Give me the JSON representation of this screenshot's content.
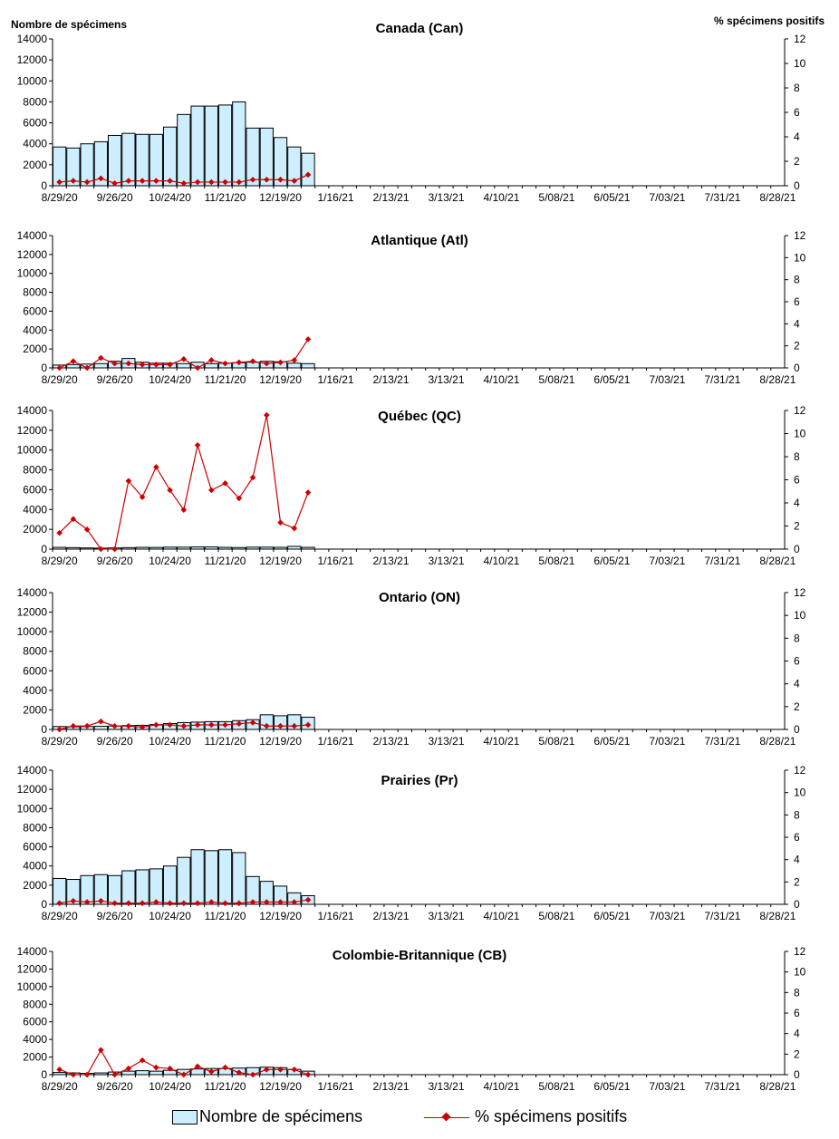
{
  "y_left_label": "Nombre de spécimens",
  "y_right_label": "% spécimens positifs",
  "legend": {
    "bars_label": "Nombre de spécimens",
    "line_label": "% spécimens positifs"
  },
  "colors": {
    "bar_fill": "#cceeff",
    "bar_stroke": "#000000",
    "line": "#cc0000"
  },
  "chart_data": [
    {
      "type": "bar",
      "title": "Canada (Can)",
      "ylim": [
        0,
        14000
      ],
      "y2lim": [
        0,
        12
      ],
      "yticks": [
        0,
        2000,
        4000,
        6000,
        8000,
        10000,
        12000,
        14000
      ],
      "y2ticks": [
        0,
        2,
        4,
        6,
        8,
        10,
        12
      ],
      "xticks": [
        "8/29/20",
        "9/26/20",
        "10/24/20",
        "11/21/20",
        "12/19/20",
        "1/16/21",
        "2/13/21",
        "3/13/21",
        "4/10/21",
        "5/08/21",
        "6/05/21",
        "7/03/21",
        "7/31/21",
        "8/28/21"
      ],
      "series": [
        {
          "name": "Nombre de spécimens",
          "kind": "bar",
          "values": [
            3700,
            3600,
            4000,
            4200,
            4800,
            5000,
            4900,
            4900,
            5600,
            6800,
            7600,
            7600,
            7700,
            8000,
            5500,
            5500,
            4600,
            3700,
            3100
          ]
        },
        {
          "name": "% spécimens positifs",
          "kind": "line",
          "values": [
            0.3,
            0.4,
            0.3,
            0.6,
            0.2,
            0.4,
            0.4,
            0.4,
            0.4,
            0.2,
            0.3,
            0.3,
            0.3,
            0.3,
            0.5,
            0.5,
            0.5,
            0.4,
            0.9
          ]
        }
      ]
    },
    {
      "type": "bar",
      "title": "Atlantique (Atl)",
      "ylim": [
        0,
        14000
      ],
      "y2lim": [
        0,
        12
      ],
      "yticks": [
        0,
        2000,
        4000,
        6000,
        8000,
        10000,
        12000,
        14000
      ],
      "y2ticks": [
        0,
        2,
        4,
        6,
        8,
        10,
        12
      ],
      "xticks": [
        "8/29/20",
        "9/26/20",
        "10/24/20",
        "11/21/20",
        "12/19/20",
        "1/16/21",
        "2/13/21",
        "3/13/21",
        "4/10/21",
        "5/08/21",
        "6/05/21",
        "7/03/21",
        "7/31/21",
        "8/28/21"
      ],
      "series": [
        {
          "name": "Nombre de spécimens",
          "kind": "bar",
          "values": [
            300,
            350,
            400,
            450,
            700,
            1000,
            600,
            500,
            500,
            450,
            600,
            450,
            500,
            550,
            600,
            700,
            650,
            500,
            450
          ]
        },
        {
          "name": "% spécimens positifs",
          "kind": "line",
          "values": [
            0.0,
            0.6,
            0.0,
            0.9,
            0.4,
            0.4,
            0.3,
            0.3,
            0.3,
            0.8,
            0.0,
            0.7,
            0.4,
            0.5,
            0.6,
            0.4,
            0.5,
            0.7,
            2.6
          ]
        }
      ]
    },
    {
      "type": "bar",
      "title": "Québec (QC)",
      "ylim": [
        0,
        14000
      ],
      "y2lim": [
        0,
        12
      ],
      "yticks": [
        0,
        2000,
        4000,
        6000,
        8000,
        10000,
        12000,
        14000
      ],
      "y2ticks": [
        0,
        2,
        4,
        6,
        8,
        10,
        12
      ],
      "xticks": [
        "8/29/20",
        "9/26/20",
        "10/24/20",
        "11/21/20",
        "12/19/20",
        "1/16/21",
        "2/13/21",
        "3/13/21",
        "4/10/21",
        "5/08/21",
        "6/05/21",
        "7/03/21",
        "7/31/21",
        "8/28/21"
      ],
      "series": [
        {
          "name": "Nombre de spécimens",
          "kind": "bar",
          "values": [
            180,
            150,
            120,
            100,
            120,
            150,
            180,
            170,
            200,
            200,
            220,
            220,
            180,
            160,
            200,
            200,
            180,
            280,
            180
          ]
        },
        {
          "name": "% spécimens positifs",
          "kind": "line",
          "values": [
            1.4,
            2.6,
            1.7,
            0.0,
            0.0,
            5.9,
            4.5,
            7.1,
            5.1,
            3.4,
            9.0,
            5.1,
            5.7,
            4.4,
            6.2,
            11.6,
            2.3,
            1.8,
            4.9
          ]
        }
      ]
    },
    {
      "type": "bar",
      "title": "Ontario (ON)",
      "ylim": [
        0,
        14000
      ],
      "y2lim": [
        0,
        12
      ],
      "yticks": [
        0,
        2000,
        4000,
        6000,
        8000,
        10000,
        12000,
        14000
      ],
      "y2ticks": [
        0,
        2,
        4,
        6,
        8,
        10,
        12
      ],
      "xticks": [
        "8/29/20",
        "9/26/20",
        "10/24/20",
        "11/21/20",
        "12/19/20",
        "1/16/21",
        "2/13/21",
        "3/13/21",
        "4/10/21",
        "5/08/21",
        "6/05/21",
        "7/03/21",
        "7/31/21",
        "8/28/21"
      ],
      "series": [
        {
          "name": "Nombre de spécimens",
          "kind": "bar",
          "values": [
            300,
            280,
            300,
            320,
            350,
            400,
            420,
            500,
            600,
            700,
            750,
            800,
            800,
            900,
            1000,
            1500,
            1400,
            1500,
            1250
          ]
        },
        {
          "name": "% spécimens positifs",
          "kind": "line",
          "values": [
            0.0,
            0.3,
            0.3,
            0.7,
            0.3,
            0.3,
            0.2,
            0.4,
            0.4,
            0.3,
            0.4,
            0.4,
            0.4,
            0.5,
            0.6,
            0.3,
            0.3,
            0.3,
            0.4
          ]
        }
      ]
    },
    {
      "type": "bar",
      "title": "Prairies (Pr)",
      "ylim": [
        0,
        14000
      ],
      "y2lim": [
        0,
        12
      ],
      "yticks": [
        0,
        2000,
        4000,
        6000,
        8000,
        10000,
        12000,
        14000
      ],
      "y2ticks": [
        0,
        2,
        4,
        6,
        8,
        10,
        12
      ],
      "xticks": [
        "8/29/20",
        "9/26/20",
        "10/24/20",
        "11/21/20",
        "12/19/20",
        "1/16/21",
        "2/13/21",
        "3/13/21",
        "4/10/21",
        "5/08/21",
        "6/05/21",
        "7/03/21",
        "7/31/21",
        "8/28/21"
      ],
      "series": [
        {
          "name": "Nombre de spécimens",
          "kind": "bar",
          "values": [
            2700,
            2600,
            3000,
            3100,
            3000,
            3500,
            3600,
            3700,
            4000,
            4900,
            5700,
            5600,
            5700,
            5400,
            2900,
            2400,
            1900,
            1200,
            900
          ]
        },
        {
          "name": "% spécimens positifs",
          "kind": "line",
          "values": [
            0.1,
            0.3,
            0.2,
            0.3,
            0.1,
            0.1,
            0.1,
            0.2,
            0.1,
            0.1,
            0.1,
            0.2,
            0.1,
            0.1,
            0.2,
            0.2,
            0.2,
            0.2,
            0.4
          ]
        }
      ]
    },
    {
      "type": "bar",
      "title": "Colombie-Britannique (CB)",
      "ylim": [
        0,
        14000
      ],
      "y2lim": [
        0,
        12
      ],
      "yticks": [
        0,
        2000,
        4000,
        6000,
        8000,
        10000,
        12000,
        14000
      ],
      "y2ticks": [
        0,
        2,
        4,
        6,
        8,
        10,
        12
      ],
      "xticks": [
        "8/29/20",
        "9/26/20",
        "10/24/20",
        "11/21/20",
        "12/19/20",
        "1/16/21",
        "2/13/21",
        "3/13/21",
        "4/10/21",
        "5/08/21",
        "6/05/21",
        "7/03/21",
        "7/31/21",
        "8/28/21"
      ],
      "series": [
        {
          "name": "Nombre de spécimens",
          "kind": "bar",
          "values": [
            250,
            200,
            150,
            200,
            300,
            400,
            450,
            400,
            500,
            600,
            650,
            700,
            700,
            750,
            800,
            850,
            800,
            600,
            400
          ]
        },
        {
          "name": "% spécimens positifs",
          "kind": "line",
          "values": [
            0.5,
            0.0,
            0.0,
            2.4,
            0.0,
            0.6,
            1.4,
            0.7,
            0.6,
            0.0,
            0.8,
            0.3,
            0.7,
            0.2,
            0.0,
            0.5,
            0.5,
            0.5,
            0.0
          ]
        }
      ]
    }
  ]
}
